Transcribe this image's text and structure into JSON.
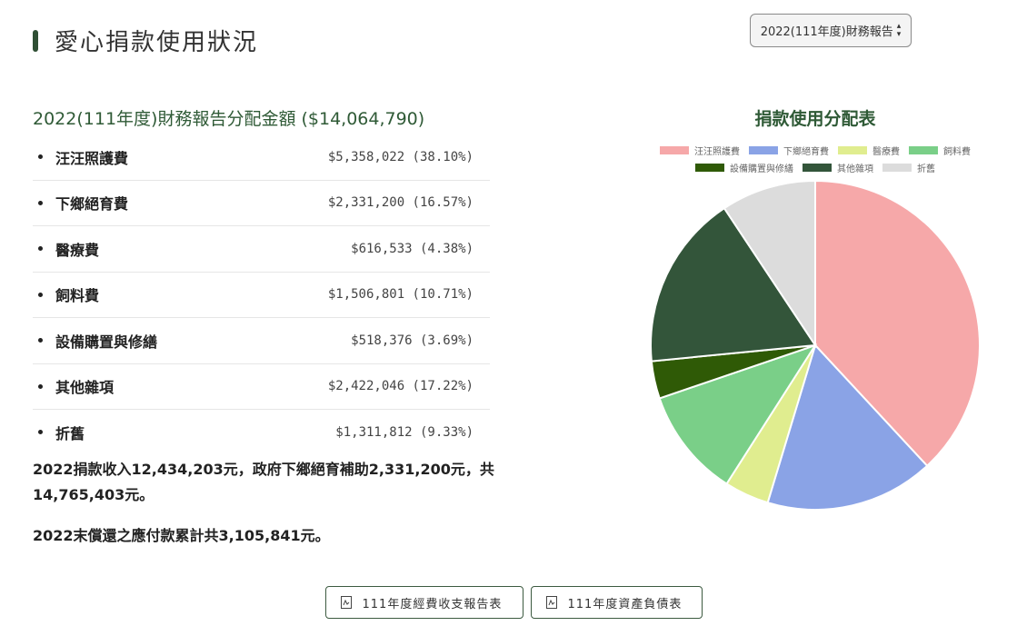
{
  "page_title": "愛心捐款使用狀況",
  "report_select": {
    "value": "2022(111年度)財務報告"
  },
  "allocation": {
    "heading": "2022(111年度)財務報告分配金額 ($14,064,790)",
    "items": [
      {
        "name": "汪汪照護費",
        "amount": "$5,358,022 (38.10%)"
      },
      {
        "name": "下鄉絕育費",
        "amount": "$2,331,200 (16.57%)"
      },
      {
        "name": "醫療費",
        "amount": "$616,533 (4.38%)"
      },
      {
        "name": "飼料費",
        "amount": "$1,506,801 (10.71%)"
      },
      {
        "name": "設備購置與修繕",
        "amount": "$518,376 (3.69%)"
      },
      {
        "name": "其他雜項",
        "amount": "$2,422,046 (17.22%)"
      },
      {
        "name": "折舊",
        "amount": "$1,311,812 (9.33%)"
      }
    ]
  },
  "summary": {
    "line1": "2022捐款收入12,434,203元，政府下鄉絕育補助2,331,200元，共14,765,403元。",
    "line2": "2022末償還之應付款累計共3,105,841元。"
  },
  "chart_data": {
    "type": "pie",
    "title": "捐款使用分配表",
    "legend_position": "top",
    "categories": [
      "汪汪照護費",
      "下鄉絕育費",
      "醫療費",
      "飼料費",
      "設備購置與修繕",
      "其他雜項",
      "折舊"
    ],
    "values": [
      5358022,
      2331200,
      616533,
      1506801,
      518376,
      2422046,
      1311812
    ],
    "colors": [
      "#f6a8a9",
      "#8aa3e6",
      "#e0ed8f",
      "#7acf88",
      "#2f5a06",
      "#33553a",
      "#dcdcdc"
    ]
  },
  "buttons": {
    "income_report": "111年度經費收支報告表",
    "balance_sheet": "111年度資產負債表"
  },
  "icons": {
    "button_icon": "pdf-file-icon",
    "select_arrow": "up-down-caret-icon"
  }
}
